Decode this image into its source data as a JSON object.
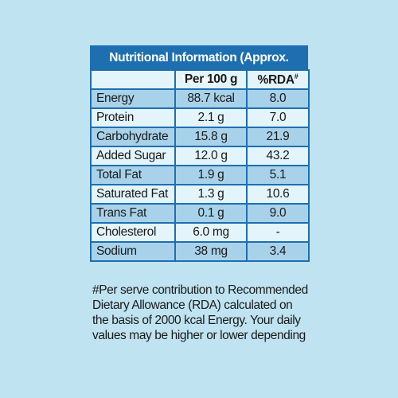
{
  "table": {
    "title": "Nutritional Information (Approx. Value)",
    "header": {
      "col1": "",
      "col2": "Per 100 g",
      "col3": "%RDA",
      "col3_sup": "#"
    },
    "rows": [
      {
        "name": "Energy",
        "per100g": "88.7 kcal",
        "rda": "8.0"
      },
      {
        "name": "Protein",
        "per100g": "2.1 g",
        "rda": "7.0"
      },
      {
        "name": "Carbohydrate",
        "per100g": "15.8 g",
        "rda": "21.9"
      },
      {
        "name": "Added Sugar",
        "per100g": "12.0 g",
        "rda": "43.2"
      },
      {
        "name": "Total Fat",
        "per100g": "1.9 g",
        "rda": "5.1"
      },
      {
        "name": "Saturated Fat",
        "per100g": "1.3 g",
        "rda": "10.6"
      },
      {
        "name": "Trans Fat",
        "per100g": "0.1 g",
        "rda": "9.0"
      },
      {
        "name": "Cholesterol",
        "per100g": "6.0 mg",
        "rda": "-"
      },
      {
        "name": "Sodium",
        "per100g": "38 mg",
        "rda": "3.4"
      }
    ]
  },
  "footnote": {
    "line1": "#Per serve contribution to Recommended",
    "line2": "Dietary Allowance (RDA) calculated on",
    "line3": "the basis of 2000 kcal Energy. Your daily",
    "line4": "values may be higher or lower depending"
  },
  "colors": {
    "background": "#bfe3f0",
    "header_blue": "#1d6fb0",
    "row_light": "#e3f4fa",
    "row_dark": "#a8d2ea"
  }
}
